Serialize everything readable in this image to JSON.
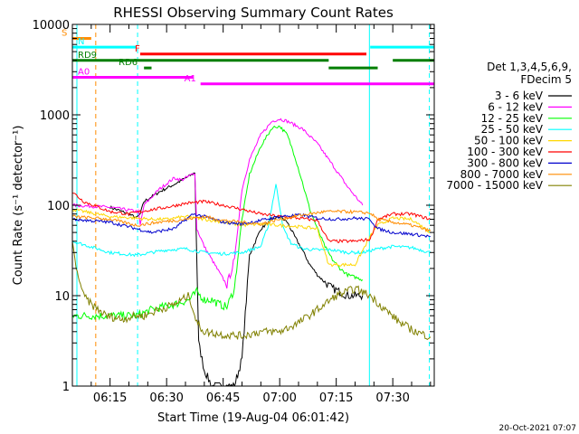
{
  "chart_data": {
    "type": "line",
    "title": "RHESSI Observing Summary Count Rates",
    "xlabel": "Start Time (19-Aug-04 06:01:42)",
    "ylabel": "Count Rate (s⁻¹ detector⁻¹)",
    "yscale": "log",
    "ylim": [
      1,
      10000
    ],
    "xlim_minutes": [
      5.0,
      101.0
    ],
    "x_ticks": [
      {
        "t": 15,
        "label": "06:15"
      },
      {
        "t": 30,
        "label": "06:30"
      },
      {
        "t": 45,
        "label": "06:45"
      },
      {
        "t": 60,
        "label": "07:00"
      },
      {
        "t": 75,
        "label": "07:15"
      },
      {
        "t": 90,
        "label": "07:30"
      }
    ],
    "y_ticks": [
      {
        "v": 1,
        "label": "1"
      },
      {
        "v": 10,
        "label": "10"
      },
      {
        "v": 100,
        "label": "100"
      },
      {
        "v": 1000,
        "label": "1000"
      },
      {
        "v": 10000,
        "label": "10000"
      }
    ],
    "legend_header": [
      "Det 1,3,4,5,6,9,",
      "FDecim 5"
    ],
    "legend_position": "right",
    "timestamp": "20-Oct-2021 07:07",
    "flag_bars": [
      {
        "label": "S",
        "color": "#ff8c00",
        "level": 7000,
        "segments": [
          [
            5,
            10
          ]
        ]
      },
      {
        "label": "N",
        "color": "#00ffff",
        "level": 5600,
        "segments": [
          [
            5,
            22
          ],
          [
            84,
            101
          ]
        ]
      },
      {
        "label": "F",
        "color": "#ff0000",
        "level": 4700,
        "segments": [
          [
            23,
            83
          ]
        ]
      },
      {
        "label": "RD9",
        "color": "#007f00",
        "level": 4000,
        "segments": [
          [
            5,
            73
          ],
          [
            90,
            101
          ]
        ]
      },
      {
        "label": "RD6",
        "color": "#007f00",
        "level": 3300,
        "segments": [
          [
            24,
            26
          ],
          [
            73,
            86
          ]
        ]
      },
      {
        "label": "A0",
        "color": "#ff00ff",
        "level": 2600,
        "segments": [
          [
            5,
            37
          ]
        ]
      },
      {
        "label": "A1",
        "color": "#ff00ff",
        "level": 2200,
        "segments": [
          [
            39,
            101
          ]
        ]
      }
    ],
    "vlines": [
      {
        "t": 6.2,
        "color": "#00ffff",
        "dash": false
      },
      {
        "t": 11.2,
        "color": "#ff8c00",
        "dash": true
      },
      {
        "t": 22.3,
        "color": "#00ffff",
        "dash": true
      },
      {
        "t": 83.8,
        "color": "#00ffff",
        "dash": false
      },
      {
        "t": 99.7,
        "color": "#00ffff",
        "dash": true
      }
    ],
    "series": [
      {
        "name": "3 - 6 keV",
        "color": "#000000",
        "x": [
          15,
          20,
          22,
          23,
          24,
          28,
          32,
          36,
          37.5,
          38.5,
          40,
          42,
          44,
          46,
          48,
          50,
          52,
          55,
          58,
          60,
          62,
          64,
          66,
          68,
          70,
          72,
          74,
          76,
          78,
          80,
          82
        ],
        "y": [
          95,
          80,
          72,
          80,
          110,
          140,
          170,
          210,
          230,
          3,
          1.5,
          1,
          1,
          1,
          1,
          2,
          28,
          55,
          70,
          75,
          65,
          45,
          32,
          22,
          17,
          14,
          12,
          11,
          10,
          10,
          10
        ]
      },
      {
        "name": "6 - 12 keV",
        "color": "#ff00ff",
        "x": [
          5,
          15,
          22.5,
          23,
          24,
          28,
          32,
          34,
          36,
          37.5,
          38,
          40,
          42,
          44,
          46,
          48,
          50,
          52,
          55,
          58,
          60,
          62,
          66,
          70,
          74,
          78,
          82
        ],
        "y": [
          100,
          95,
          85,
          60,
          100,
          150,
          200,
          190,
          210,
          230,
          55,
          35,
          25,
          18,
          13,
          25,
          150,
          320,
          600,
          850,
          900,
          850,
          700,
          480,
          280,
          160,
          100
        ]
      },
      {
        "name": "12 - 25 keV",
        "color": "#00ff00",
        "x": [
          5,
          15,
          22,
          26,
          32,
          36,
          38,
          40,
          42,
          44,
          46,
          48,
          50,
          52,
          55,
          58,
          60,
          62,
          64,
          66,
          68,
          70,
          72,
          74,
          76,
          78,
          80,
          82
        ],
        "y": [
          6,
          6,
          6,
          7,
          8,
          9,
          11,
          9,
          9,
          8,
          7.5,
          12,
          70,
          220,
          450,
          720,
          750,
          600,
          350,
          180,
          90,
          55,
          35,
          25,
          20,
          17,
          16,
          15
        ]
      },
      {
        "name": "25 - 50 keV",
        "color": "#00ffff",
        "x": [
          5,
          15,
          22,
          26,
          30,
          35,
          40,
          45,
          50,
          55,
          57,
          59,
          61,
          63,
          66,
          70,
          74,
          78,
          82,
          86,
          90,
          95,
          100
        ],
        "y": [
          40,
          30,
          28,
          30,
          32,
          33,
          30,
          29,
          30,
          35,
          60,
          170,
          55,
          38,
          33,
          32,
          32,
          30,
          30,
          33,
          35,
          34,
          30
        ]
      },
      {
        "name": "50 - 100 keV",
        "color": "#ffd700",
        "x": [
          5,
          15,
          22,
          26,
          30,
          35,
          40,
          45,
          50,
          55,
          60,
          65,
          70,
          73,
          76,
          80,
          84,
          86,
          90,
          95,
          100
        ],
        "y": [
          90,
          75,
          72,
          70,
          70,
          75,
          70,
          65,
          60,
          62,
          60,
          58,
          55,
          22,
          22,
          22,
          45,
          60,
          72,
          70,
          50
        ]
      },
      {
        "name": "100 - 300 keV",
        "color": "#ff0000",
        "x": [
          5,
          8,
          15,
          20,
          25,
          30,
          35,
          40,
          45,
          50,
          55,
          60,
          65,
          70,
          73,
          76,
          80,
          84,
          86,
          90,
          95,
          100
        ],
        "y": [
          140,
          110,
          85,
          80,
          88,
          95,
          105,
          110,
          100,
          90,
          80,
          75,
          72,
          68,
          40,
          40,
          40,
          42,
          70,
          80,
          80,
          70
        ]
      },
      {
        "name": "300 - 800 keV",
        "color": "#0000cd",
        "x": [
          5,
          15,
          22,
          26,
          32,
          37,
          40,
          45,
          50,
          55,
          60,
          66,
          70,
          75,
          80,
          84,
          86,
          90,
          95,
          100
        ],
        "y": [
          70,
          65,
          55,
          50,
          55,
          80,
          75,
          65,
          62,
          68,
          75,
          78,
          72,
          70,
          72,
          70,
          55,
          50,
          48,
          45
        ]
      },
      {
        "name": "800 - 7000 keV",
        "color": "#ff8c00",
        "x": [
          5,
          15,
          22,
          28,
          35,
          40,
          45,
          50,
          55,
          60,
          66,
          72,
          78,
          84,
          86,
          90,
          95,
          100
        ],
        "y": [
          75,
          70,
          60,
          65,
          70,
          75,
          68,
          65,
          62,
          70,
          78,
          85,
          85,
          82,
          70,
          65,
          60,
          52
        ]
      },
      {
        "name": "7000 - 15000 keV",
        "color": "#808000",
        "x": [
          5,
          6,
          8,
          10,
          14,
          18,
          22,
          24,
          28,
          32,
          34,
          36,
          38,
          40,
          45,
          50,
          55,
          60,
          65,
          70,
          75,
          80,
          84,
          88,
          92,
          96,
          100
        ],
        "y": [
          40,
          20,
          10,
          8,
          6,
          5.5,
          6,
          6,
          7,
          8,
          9,
          10,
          5,
          4,
          3.7,
          3.6,
          4,
          4,
          5,
          7,
          10,
          12,
          10,
          7,
          5,
          4,
          3.5
        ]
      }
    ]
  }
}
